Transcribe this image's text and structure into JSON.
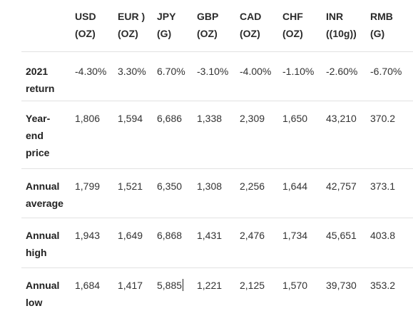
{
  "table": {
    "headers": [
      {
        "line1": "",
        "line2": ""
      },
      {
        "line1": "USD",
        "line2": "(OZ)"
      },
      {
        "line1": "EUR )",
        "line2": "(OZ)"
      },
      {
        "line1": "JPY",
        "line2": "(G)"
      },
      {
        "line1": "GBP",
        "line2": "(OZ)"
      },
      {
        "line1": "CAD",
        "line2": "(OZ)"
      },
      {
        "line1": "CHF",
        "line2": "(OZ)"
      },
      {
        "line1": "INR",
        "line2": "((10g))"
      },
      {
        "line1": "RMB",
        "line2": "(G)"
      }
    ],
    "rows": [
      {
        "label_lines": [
          "2021",
          "return"
        ],
        "values": [
          "-4.30%",
          "3.30%",
          "6.70%",
          "-3.10%",
          "-4.00%",
          "-1.10%",
          "-2.60%",
          "-6.70%"
        ]
      },
      {
        "label_lines": [
          "Year-",
          "end",
          "price"
        ],
        "values": [
          "1,806",
          "1,594",
          "6,686",
          "1,338",
          "2,309",
          "1,650",
          "43,210",
          "370.2"
        ]
      },
      {
        "label_lines": [
          "Annual",
          "average"
        ],
        "values": [
          "1,799",
          "1,521",
          "6,350",
          "1,308",
          "2,256",
          "1,644",
          "42,757",
          "373.1"
        ]
      },
      {
        "label_lines": [
          "Annual",
          "high"
        ],
        "values": [
          "1,943",
          "1,649",
          "6,868",
          "1,431",
          "2,476",
          "1,734",
          "45,651",
          "403.8"
        ]
      },
      {
        "label_lines": [
          "Annual",
          "low"
        ],
        "values": [
          "1,684",
          "1,417",
          "5,885",
          "1,221",
          "2,125",
          "1,570",
          "39,730",
          "353.2"
        ]
      }
    ]
  }
}
